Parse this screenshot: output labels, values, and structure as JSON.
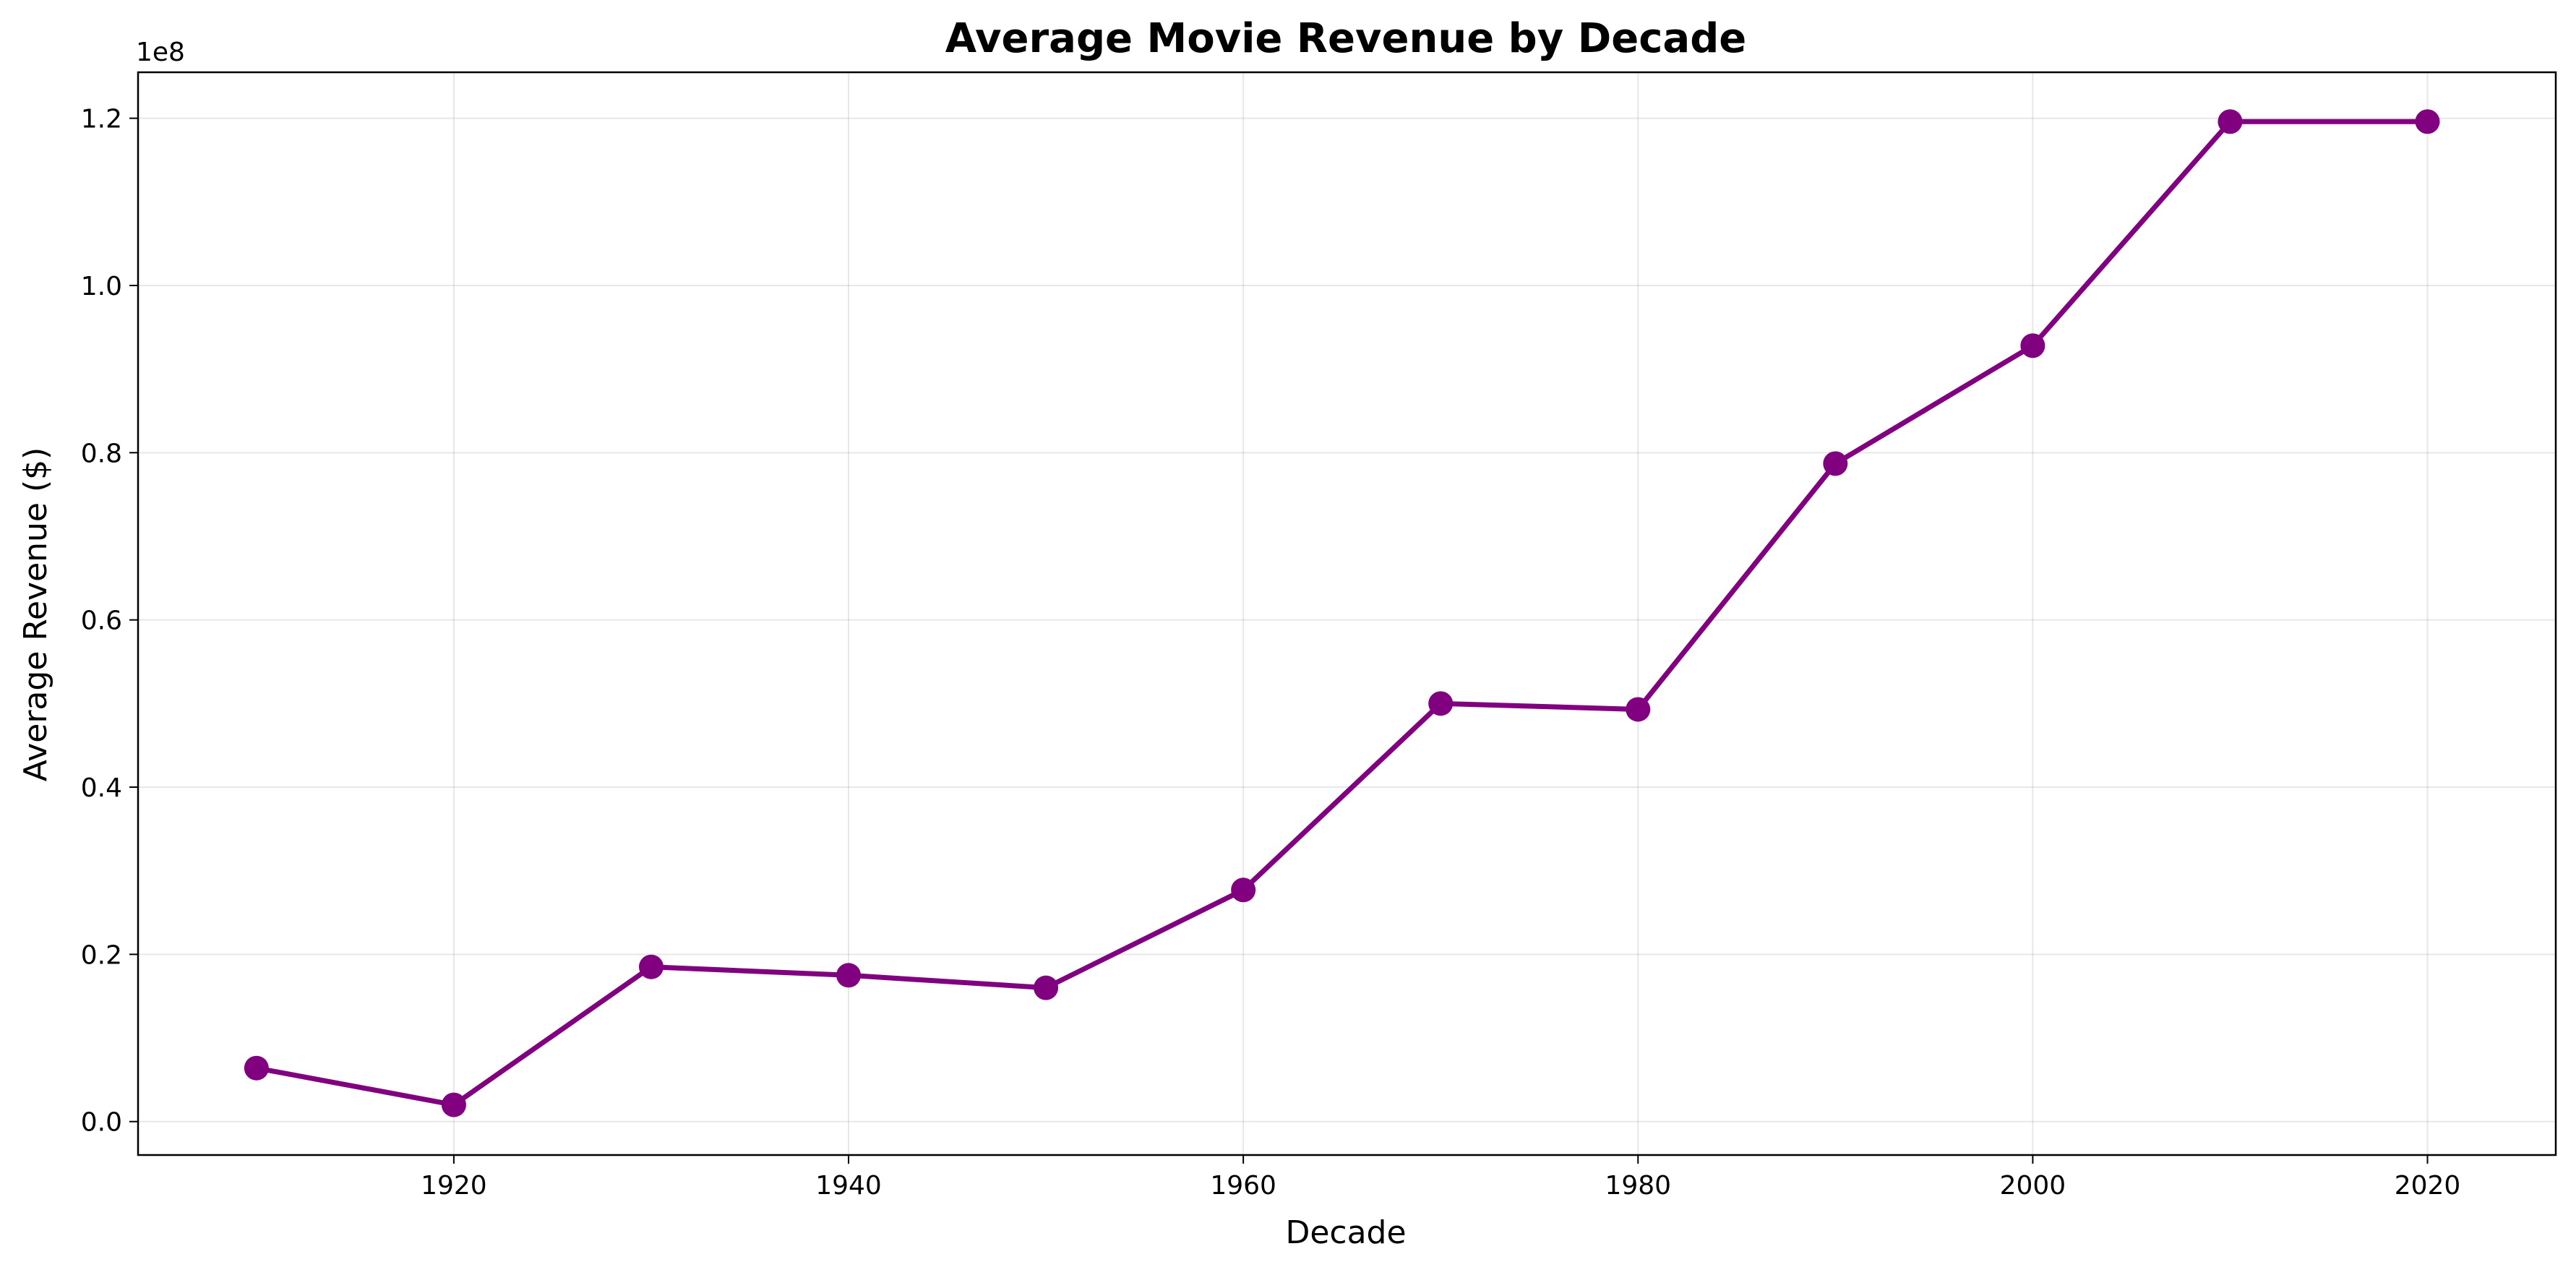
{
  "chart_data": {
    "type": "line",
    "title": "Average Movie Revenue by Decade",
    "xlabel": "Decade",
    "ylabel": "Average Revenue ($)",
    "y_offset_label": "1e8",
    "x": [
      1910,
      1920,
      1930,
      1940,
      1950,
      1960,
      1970,
      1980,
      1990,
      2000,
      2010,
      2020
    ],
    "series": [
      {
        "values": [
          6400000,
          2000000,
          18500000,
          17500000,
          16000000,
          27700000,
          50000000,
          49300000,
          78700000,
          92800000,
          119600000,
          119600000
        ],
        "color": "#800080",
        "marker": "circle"
      }
    ],
    "xlim": [
      1904,
      2026.5
    ],
    "ylim": [
      -4000000,
      125500000
    ],
    "x_ticks": [
      1920,
      1940,
      1960,
      1980,
      2000,
      2020
    ],
    "x_tick_labels": [
      "1920",
      "1940",
      "1960",
      "1980",
      "2000",
      "2020"
    ],
    "y_ticks": [
      0,
      20000000,
      40000000,
      60000000,
      80000000,
      100000000,
      120000000
    ],
    "y_tick_labels": [
      "0.0",
      "0.2",
      "0.4",
      "0.6",
      "0.8",
      "1.0",
      "1.2"
    ],
    "grid": true,
    "legend": "none"
  }
}
